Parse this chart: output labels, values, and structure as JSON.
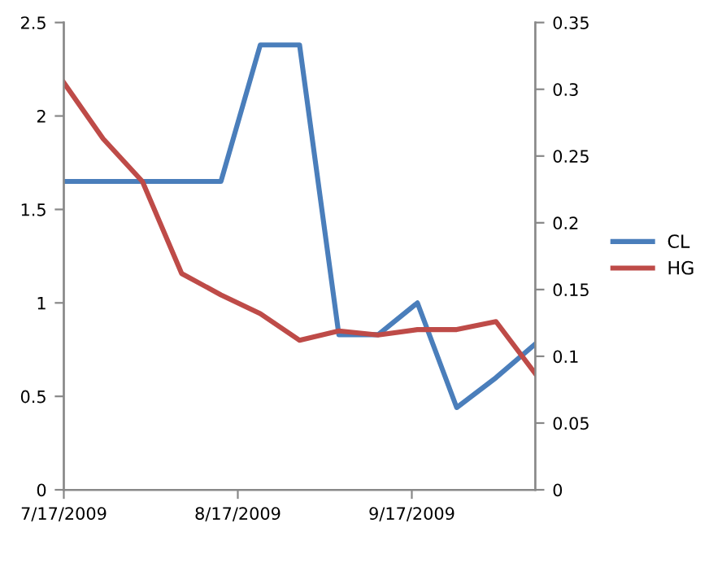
{
  "chart_data": {
    "type": "line",
    "x": [
      "2009-07-17",
      "2009-07-24",
      "2009-07-31",
      "2009-08-07",
      "2009-08-14",
      "2009-08-21",
      "2009-08-28",
      "2009-09-04",
      "2009-09-11",
      "2009-09-18",
      "2009-09-25",
      "2009-10-02",
      "2009-10-09"
    ],
    "series": [
      {
        "name": "CL",
        "color": "#4a7ebb",
        "values": [
          1.65,
          1.65,
          1.65,
          1.65,
          1.65,
          2.38,
          2.38,
          0.83,
          0.83,
          1.0,
          0.44,
          0.6,
          0.78
        ]
      },
      {
        "name": "HG",
        "color": "#be4b48",
        "axis": "y2",
        "values": [
          0.305,
          0.263,
          0.231,
          0.162,
          0.146,
          0.132,
          0.112,
          0.119,
          0.116,
          0.12,
          0.12,
          0.126,
          0.087
        ]
      }
    ],
    "xlim": [
      "2009-07-17",
      "2009-10-09"
    ],
    "xticks": [
      {
        "value": "2009-07-17",
        "label": "7/17/2009"
      },
      {
        "value": "2009-08-17",
        "label": "8/17/2009"
      },
      {
        "value": "2009-09-17",
        "label": "9/17/2009"
      }
    ],
    "ylim": [
      0,
      2.5
    ],
    "yticks": [
      0,
      0.5,
      1,
      1.5,
      2,
      2.5
    ],
    "y2lim": [
      0,
      0.35
    ],
    "y2ticks": [
      0,
      0.05,
      0.1,
      0.15,
      0.2,
      0.25,
      0.3,
      0.35
    ],
    "grid": false,
    "legend": "right",
    "marker": "none",
    "line_style": "solid"
  }
}
